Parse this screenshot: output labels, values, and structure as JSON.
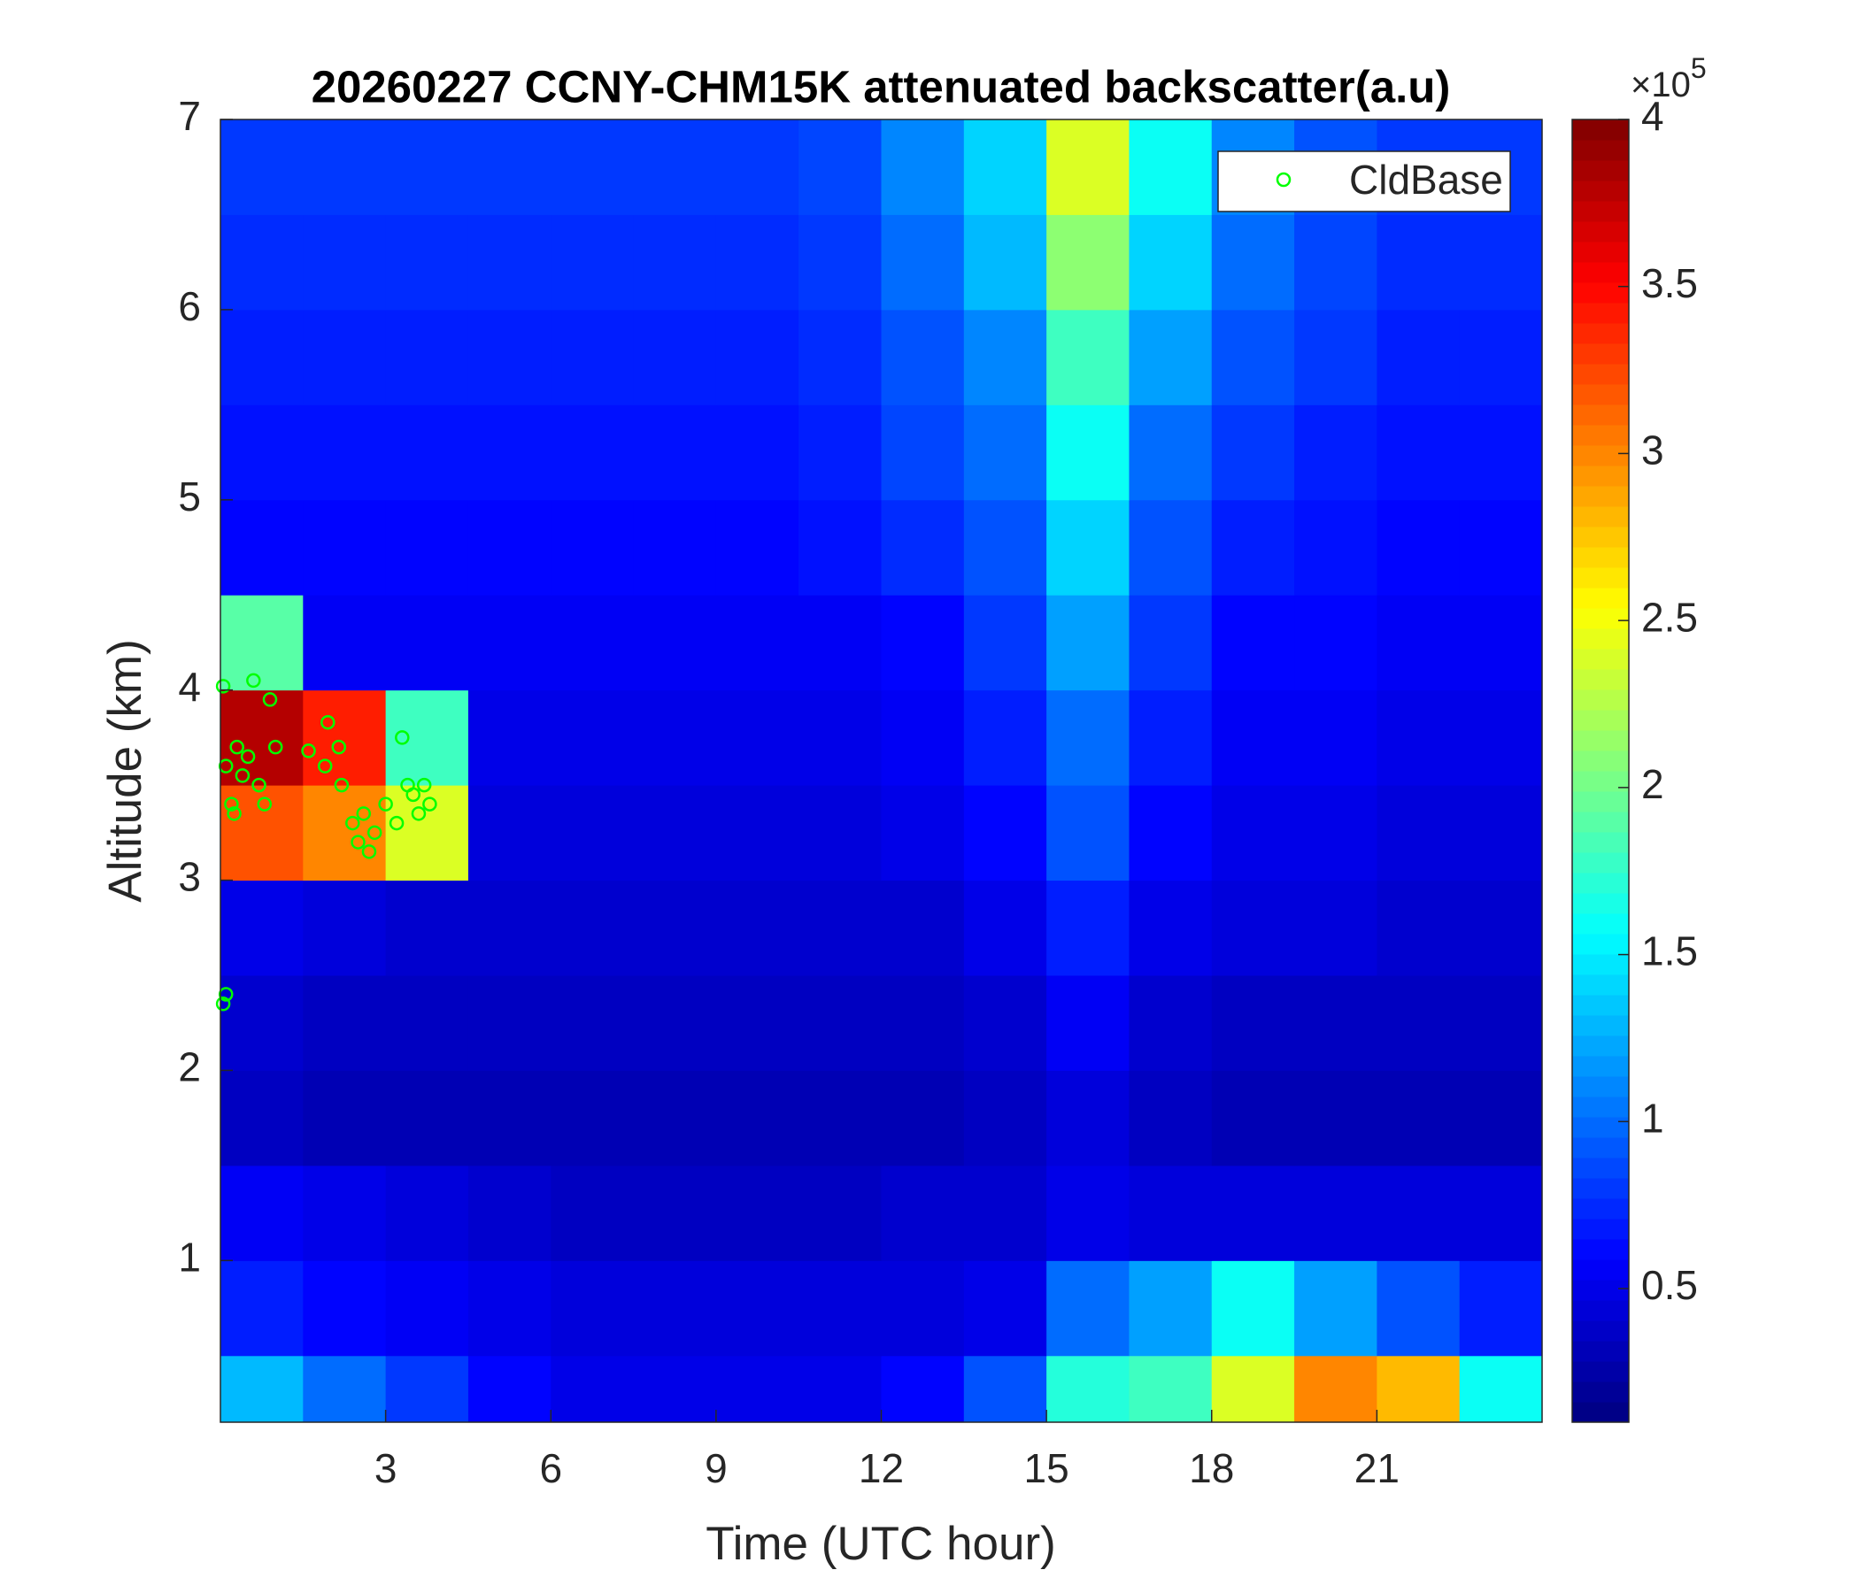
{
  "chart_data": {
    "type": "heatmap",
    "title": "20260227 CCNY-CHM15K attenuated backscatter(a.u)",
    "xlabel": "Time (UTC hour)",
    "ylabel": "Altitude (km)",
    "xlim": [
      0,
      24
    ],
    "ylim": [
      0.15,
      7
    ],
    "xticks": [
      3,
      6,
      9,
      12,
      15,
      18,
      21
    ],
    "yticks": [
      1,
      2,
      3,
      4,
      5,
      6,
      7
    ],
    "x_edges": [
      0,
      1.5,
      3,
      4.5,
      6,
      7.5,
      9,
      10.5,
      12,
      13.5,
      15,
      16.5,
      18,
      19.5,
      21,
      22.5,
      24
    ],
    "y_edges": [
      0.15,
      0.5,
      1,
      1.5,
      2,
      2.5,
      3,
      3.5,
      4,
      4.5,
      5,
      5.5,
      6,
      6.5,
      7
    ],
    "z": [
      [
        1.3,
        1.0,
        0.8,
        0.6,
        0.5,
        0.5,
        0.5,
        0.5,
        0.6,
        0.9,
        1.7,
        1.8,
        2.4,
        3.0,
        2.8,
        1.6
      ],
      [
        0.7,
        0.6,
        0.55,
        0.5,
        0.45,
        0.45,
        0.45,
        0.45,
        0.45,
        0.5,
        1.0,
        1.2,
        1.6,
        1.2,
        0.9,
        0.7
      ],
      [
        0.55,
        0.5,
        0.45,
        0.4,
        0.35,
        0.35,
        0.35,
        0.35,
        0.4,
        0.4,
        0.5,
        0.45,
        0.45,
        0.45,
        0.45,
        0.45
      ],
      [
        0.35,
        0.3,
        0.3,
        0.3,
        0.3,
        0.3,
        0.3,
        0.3,
        0.3,
        0.35,
        0.45,
        0.35,
        0.3,
        0.3,
        0.3,
        0.3
      ],
      [
        0.4,
        0.35,
        0.35,
        0.35,
        0.35,
        0.35,
        0.35,
        0.35,
        0.35,
        0.4,
        0.55,
        0.4,
        0.35,
        0.35,
        0.35,
        0.35
      ],
      [
        0.5,
        0.45,
        0.4,
        0.4,
        0.4,
        0.4,
        0.4,
        0.4,
        0.4,
        0.5,
        0.7,
        0.5,
        0.45,
        0.45,
        0.4,
        0.4
      ],
      [
        3.2,
        3.0,
        2.4,
        0.45,
        0.45,
        0.45,
        0.45,
        0.45,
        0.5,
        0.6,
        0.9,
        0.6,
        0.5,
        0.5,
        0.45,
        0.45
      ],
      [
        3.8,
        3.4,
        1.8,
        0.5,
        0.5,
        0.5,
        0.5,
        0.5,
        0.55,
        0.7,
        1.0,
        0.7,
        0.55,
        0.55,
        0.5,
        0.5
      ],
      [
        1.9,
        0.55,
        0.55,
        0.55,
        0.55,
        0.55,
        0.55,
        0.55,
        0.6,
        0.8,
        1.2,
        0.8,
        0.6,
        0.6,
        0.55,
        0.55
      ],
      [
        0.6,
        0.6,
        0.6,
        0.6,
        0.6,
        0.6,
        0.6,
        0.65,
        0.75,
        0.9,
        1.4,
        0.9,
        0.7,
        0.65,
        0.6,
        0.6
      ],
      [
        0.65,
        0.65,
        0.65,
        0.65,
        0.65,
        0.65,
        0.65,
        0.7,
        0.85,
        1.0,
        1.6,
        1.0,
        0.8,
        0.7,
        0.65,
        0.65
      ],
      [
        0.7,
        0.7,
        0.7,
        0.7,
        0.7,
        0.7,
        0.7,
        0.75,
        0.9,
        1.1,
        1.8,
        1.2,
        0.9,
        0.8,
        0.7,
        0.7
      ],
      [
        0.75,
        0.75,
        0.75,
        0.75,
        0.75,
        0.75,
        0.75,
        0.8,
        1.0,
        1.3,
        2.1,
        1.4,
        1.0,
        0.85,
        0.75,
        0.75
      ],
      [
        0.8,
        0.8,
        0.8,
        0.8,
        0.8,
        0.8,
        0.8,
        0.85,
        1.1,
        1.4,
        2.4,
        1.6,
        1.1,
        0.9,
        0.8,
        0.8
      ]
    ],
    "colorbar": {
      "clim": [
        0.1,
        4
      ],
      "ticks": [
        0.5,
        1,
        1.5,
        2,
        2.5,
        3,
        3.5,
        4
      ],
      "multiplier": "×10",
      "exponent": "5"
    },
    "series": [
      {
        "name": "CldBase",
        "color": "#00ff00",
        "x": [
          0.05,
          0.1,
          0.2,
          0.3,
          0.4,
          0.5,
          0.6,
          0.7,
          0.8,
          0.9,
          1.0,
          0.25,
          0.05,
          0.1,
          1.6,
          1.95,
          1.9,
          2.15,
          2.2,
          2.4,
          2.5,
          2.6,
          2.8,
          3.0,
          3.2,
          3.3,
          3.4,
          3.5,
          3.6,
          3.7,
          3.8,
          2.7
        ],
        "y": [
          4.02,
          3.6,
          3.4,
          3.7,
          3.55,
          3.65,
          4.05,
          3.5,
          3.4,
          3.95,
          3.7,
          3.35,
          2.35,
          2.4,
          3.68,
          3.83,
          3.6,
          3.7,
          3.5,
          3.3,
          3.2,
          3.35,
          3.25,
          3.4,
          3.3,
          3.75,
          3.5,
          3.45,
          3.35,
          3.5,
          3.4,
          3.15
        ]
      }
    ],
    "legend": "upper right"
  }
}
